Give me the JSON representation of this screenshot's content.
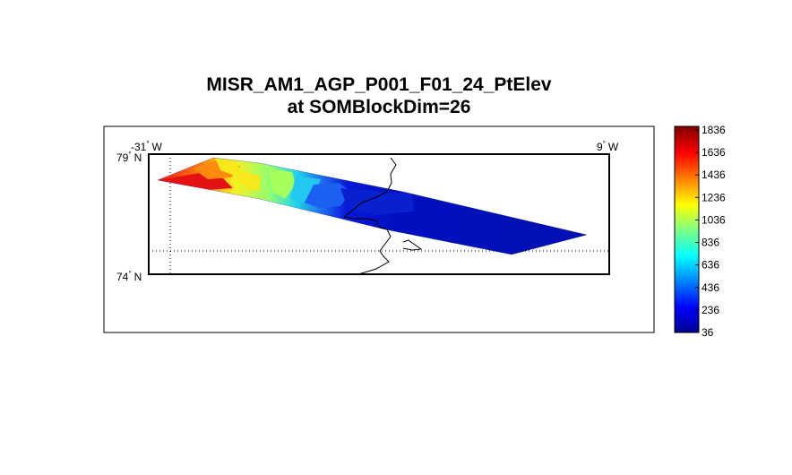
{
  "figure": {
    "title_line1": "MISR_AM1_AGP_P001_F01_24_PtElev",
    "title_line2": "at SOMBlockDim=26"
  },
  "map": {
    "lat_top_label": "79",
    "lat_bottom_label": "74",
    "lat_hemisphere": "N",
    "lon_left_label": "-31",
    "lon_right_label": "9",
    "lon_hemisphere": "W",
    "degree_symbol": "°"
  },
  "colorbar": {
    "ticks": [
      "1836",
      "1636",
      "1436",
      "1236",
      "1036",
      "836",
      "636",
      "436",
      "236",
      "36"
    ],
    "min": 36,
    "max": 1836,
    "colormap": "jet",
    "colors": [
      "#00008f",
      "#0000ff",
      "#0080ff",
      "#00ffff",
      "#80ff80",
      "#ffff00",
      "#ff8000",
      "#ff0000",
      "#800000"
    ]
  }
}
